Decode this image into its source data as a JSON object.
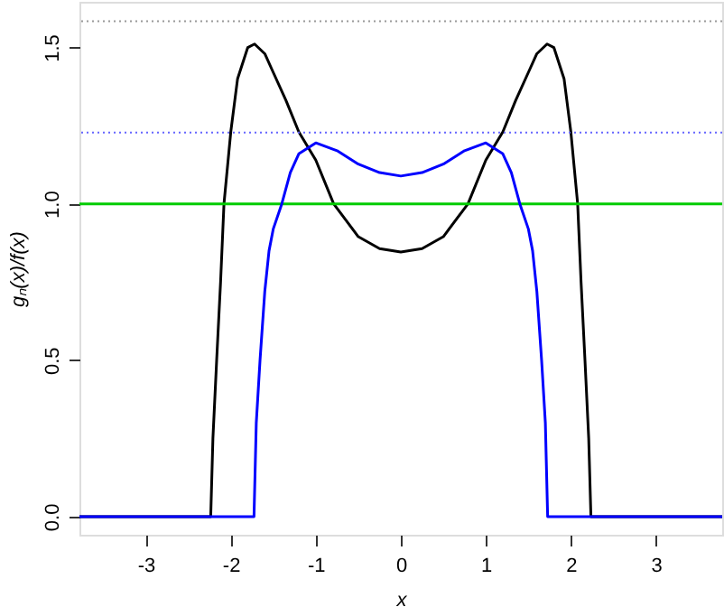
{
  "chart_data": {
    "type": "line",
    "xlabel": "x",
    "ylabel": "gₙ(x)/f(x)",
    "xlim": [
      -3.78,
      3.78
    ],
    "ylim": [
      -0.058,
      1.646
    ],
    "xticks": [
      -3,
      -2,
      -1,
      0,
      1,
      2,
      3
    ],
    "yticks": [
      {
        "value": 0,
        "label": "0.0"
      },
      0.5,
      {
        "value": 1,
        "label": "1.0"
      },
      1.5
    ],
    "grid": false,
    "marker": "none",
    "line_style": "solid",
    "series": [
      {
        "color": "#000000",
        "x": [
          -3.78,
          -2.236,
          -2.21,
          -2.166,
          -2.12,
          -2.08,
          -2.0,
          -1.92,
          -1.8,
          -1.72,
          -1.6,
          -1.5,
          -1.35,
          -1.2,
          -1.0,
          -0.79,
          -0.5,
          -0.25,
          0,
          0.25,
          0.5,
          0.79,
          1.0,
          1.2,
          1.35,
          1.5,
          1.6,
          1.72,
          1.8,
          1.92,
          2.0,
          2.08,
          2.12,
          2.166,
          2.21,
          2.236,
          3.78
        ],
        "values": [
          0,
          0,
          0.25,
          0.5,
          0.75,
          1.0,
          1.23,
          1.4,
          1.5,
          1.511,
          1.48,
          1.42,
          1.33,
          1.23,
          1.14,
          1.0,
          0.895,
          0.857,
          0.846,
          0.857,
          0.895,
          1.0,
          1.14,
          1.23,
          1.33,
          1.42,
          1.48,
          1.511,
          1.5,
          1.4,
          1.23,
          1.0,
          0.75,
          0.5,
          0.25,
          0,
          0
        ]
      },
      {
        "color": "#0000ff",
        "x": [
          -3.78,
          -1.727,
          -1.7,
          -1.656,
          -1.6,
          -1.55,
          -1.5,
          -1.4,
          -1.3,
          -1.2,
          -1.0,
          -0.75,
          -0.5,
          -0.25,
          0,
          0.25,
          0.5,
          0.75,
          1.0,
          1.2,
          1.3,
          1.4,
          1.5,
          1.55,
          1.6,
          1.656,
          1.7,
          1.727,
          3.78
        ],
        "values": [
          0,
          0,
          0.3,
          0.5,
          0.72,
          0.85,
          0.92,
          1.0,
          1.1,
          1.16,
          1.195,
          1.17,
          1.127,
          1.1,
          1.089,
          1.1,
          1.127,
          1.17,
          1.195,
          1.16,
          1.1,
          1.0,
          0.92,
          0.85,
          0.72,
          0.5,
          0.3,
          0,
          0
        ]
      }
    ],
    "ref_lines": [
      {
        "axis": "y",
        "value": 1.584,
        "color": "#999999",
        "line_style": "dotted"
      },
      {
        "axis": "y",
        "value": 1.228,
        "color": "#6666ff",
        "line_style": "dotted"
      },
      {
        "axis": "y",
        "value": 1.0,
        "color": "#00cc00",
        "line_style": "solid"
      }
    ]
  }
}
